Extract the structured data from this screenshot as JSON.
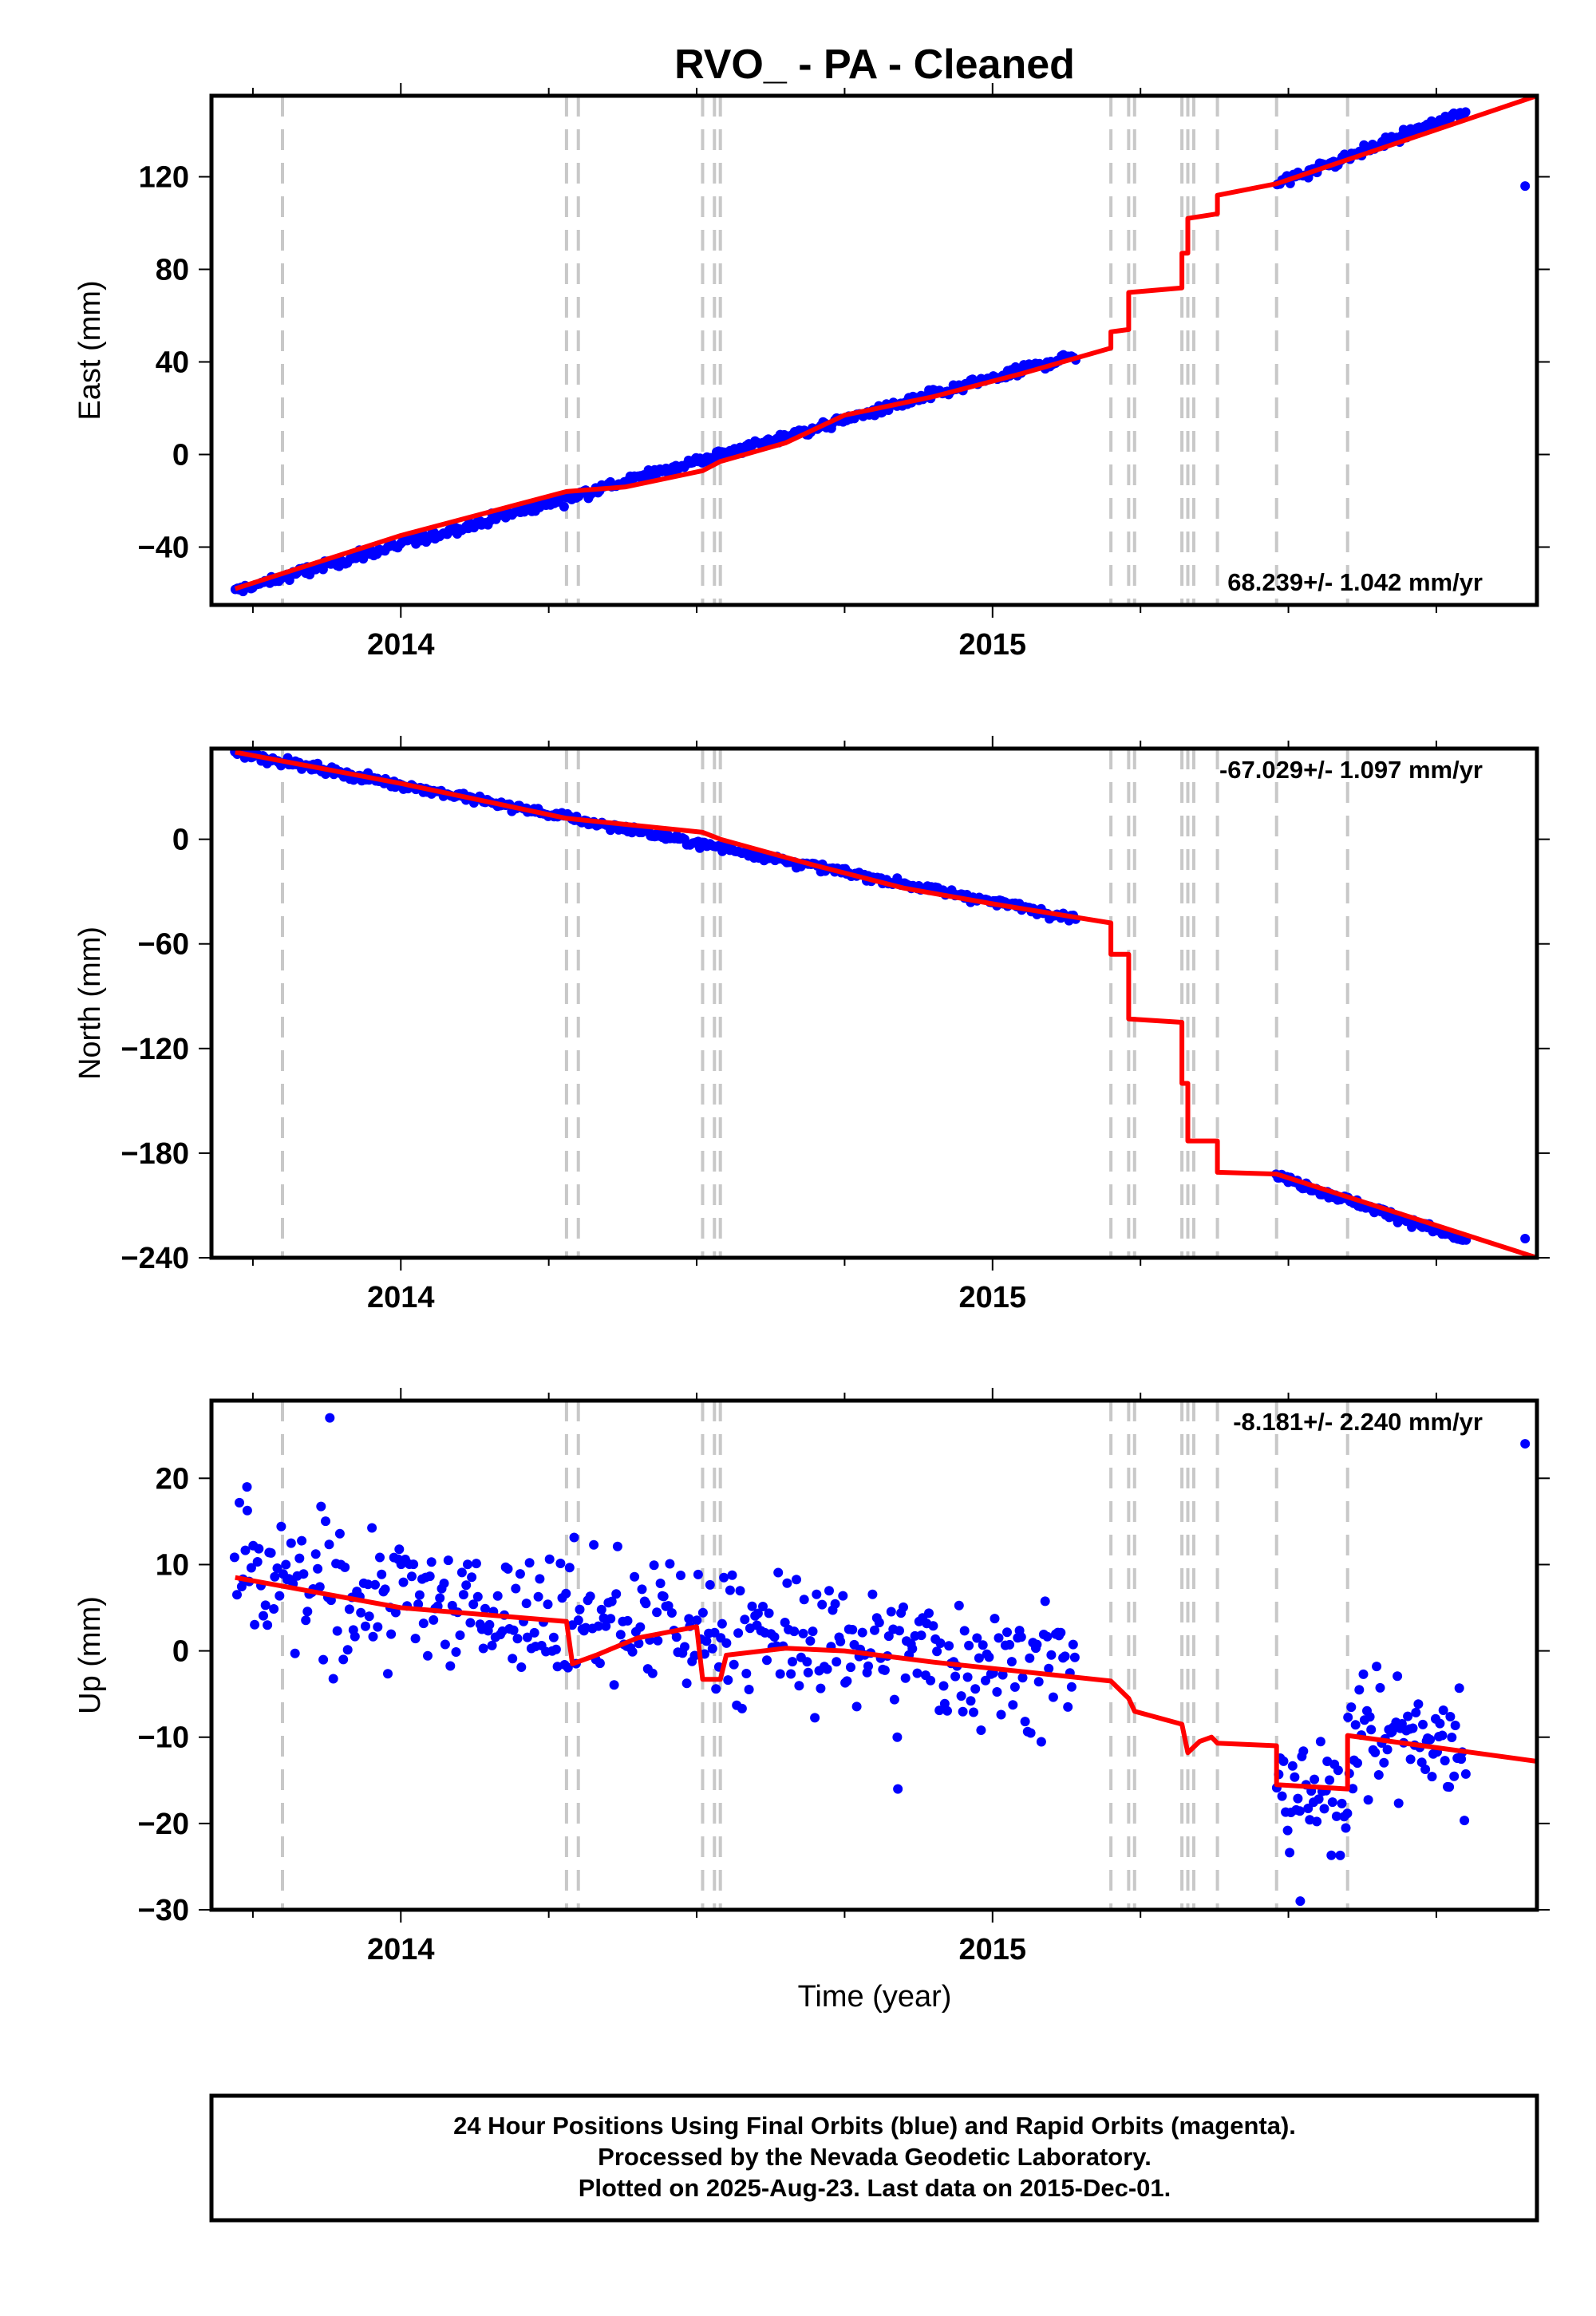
{
  "title": "RVO_  - PA - Cleaned",
  "xlabel": "Time (year)",
  "footer": [
    "24 Hour Positions Using Final Orbits (blue) and Rapid Orbits (magenta).",
    "Processed by the Nevada Geodetic Laboratory.",
    "Plotted on 2025-Aug-23. Last data on 2015-Dec-01."
  ],
  "colors": {
    "data": "#0000ff",
    "model": "#ff0000",
    "events": "#c8c8c8"
  },
  "chart_data": [
    {
      "type": "scatter",
      "ylabel": "East (mm)",
      "rate_label": "68.239+/- 1.042 mm/yr",
      "xlim": [
        2013.68,
        2015.92
      ],
      "ylim": [
        -65,
        155
      ],
      "yticks": [
        -40,
        0,
        40,
        80,
        120
      ],
      "xticks": [
        2014,
        2015
      ],
      "events": [
        2013.8,
        2014.28,
        2014.3,
        2014.51,
        2014.53,
        2014.54,
        2015.2,
        2015.23,
        2015.24,
        2015.32,
        2015.33,
        2015.34,
        2015.38,
        2015.48,
        2015.6
      ],
      "model": [
        [
          2013.72,
          -58
        ],
        [
          2014.0,
          -35
        ],
        [
          2014.28,
          -16
        ],
        [
          2014.38,
          -14
        ],
        [
          2014.51,
          -7
        ],
        [
          2014.54,
          -3
        ],
        [
          2014.65,
          5
        ],
        [
          2014.75,
          17
        ],
        [
          2014.9,
          25
        ],
        [
          2015.05,
          35
        ],
        [
          2015.2,
          46
        ],
        [
          2015.2,
          53
        ],
        [
          2015.23,
          54
        ],
        [
          2015.23,
          70
        ],
        [
          2015.32,
          72
        ],
        [
          2015.32,
          87
        ],
        [
          2015.33,
          87
        ],
        [
          2015.33,
          102
        ],
        [
          2015.38,
          104
        ],
        [
          2015.38,
          112
        ],
        [
          2015.48,
          117
        ],
        [
          2015.92,
          155
        ]
      ],
      "series": [
        {
          "segments": [
            [
              2013.72,
              2015.14,
              -59,
              43,
              1.6,
              420
            ]
          ]
        },
        {
          "segments": [
            [
              2015.48,
              2015.8,
              117,
              148,
              1.6,
              110
            ]
          ]
        },
        {
          "points": [
            [
              2015.9,
              116
            ]
          ]
        }
      ]
    },
    {
      "type": "scatter",
      "ylabel": "North (mm)",
      "rate_label": "-67.029+/- 1.097 mm/yr",
      "xlim": [
        2013.68,
        2015.92
      ],
      "ylim": [
        -240,
        52
      ],
      "yticks": [
        -240,
        -180,
        -120,
        -60,
        0
      ],
      "xticks": [
        2014,
        2015
      ],
      "events": [
        2013.8,
        2014.28,
        2014.3,
        2014.51,
        2014.53,
        2014.54,
        2015.2,
        2015.23,
        2015.24,
        2015.32,
        2015.33,
        2015.34,
        2015.38,
        2015.48,
        2015.6
      ],
      "model": [
        [
          2013.72,
          50
        ],
        [
          2014.0,
          32
        ],
        [
          2014.28,
          12
        ],
        [
          2014.51,
          4
        ],
        [
          2014.54,
          0
        ],
        [
          2014.7,
          -15
        ],
        [
          2014.85,
          -28
        ],
        [
          2015.0,
          -37
        ],
        [
          2015.2,
          -48
        ],
        [
          2015.2,
          -66
        ],
        [
          2015.23,
          -66
        ],
        [
          2015.23,
          -103
        ],
        [
          2015.32,
          -105
        ],
        [
          2015.32,
          -140
        ],
        [
          2015.33,
          -140
        ],
        [
          2015.33,
          -173
        ],
        [
          2015.38,
          -173
        ],
        [
          2015.38,
          -191
        ],
        [
          2015.48,
          -192
        ],
        [
          2015.92,
          -240
        ]
      ],
      "series": [
        {
          "segments": [
            [
              2013.72,
              2015.14,
              50,
              -45,
              1.6,
              420
            ]
          ]
        },
        {
          "segments": [
            [
              2015.48,
              2015.8,
              -193,
              -230,
              1.6,
              110
            ]
          ]
        },
        {
          "points": [
            [
              2015.9,
              -229
            ]
          ]
        }
      ]
    },
    {
      "type": "scatter",
      "ylabel": "Up (mm)",
      "rate_label": "-8.181+/- 2.240 mm/yr",
      "xlim": [
        2013.68,
        2015.92
      ],
      "ylim": [
        -30,
        29
      ],
      "yticks": [
        -30,
        -20,
        -10,
        0,
        10,
        20
      ],
      "xticks": [
        2014,
        2015
      ],
      "events": [
        2013.8,
        2014.28,
        2014.3,
        2014.51,
        2014.53,
        2014.54,
        2015.2,
        2015.23,
        2015.24,
        2015.32,
        2015.33,
        2015.34,
        2015.38,
        2015.48,
        2015.6
      ],
      "model": [
        [
          2013.72,
          8.5
        ],
        [
          2014.0,
          5.0
        ],
        [
          2014.28,
          3.4
        ],
        [
          2014.29,
          -1.5
        ],
        [
          2014.33,
          -0.5
        ],
        [
          2014.4,
          1.5
        ],
        [
          2014.5,
          2.8
        ],
        [
          2014.51,
          -3.3
        ],
        [
          2014.54,
          -3.3
        ],
        [
          2014.55,
          -0.5
        ],
        [
          2014.65,
          0.3
        ],
        [
          2014.75,
          0
        ],
        [
          2014.9,
          -1.3
        ],
        [
          2015.2,
          -3.5
        ],
        [
          2015.23,
          -5.5
        ],
        [
          2015.24,
          -7.0
        ],
        [
          2015.32,
          -8.5
        ],
        [
          2015.33,
          -11.8
        ],
        [
          2015.35,
          -10.5
        ],
        [
          2015.37,
          -10.0
        ],
        [
          2015.38,
          -10.7
        ],
        [
          2015.48,
          -11.0
        ],
        [
          2015.48,
          -15.5
        ],
        [
          2015.6,
          -16.0
        ],
        [
          2015.6,
          -9.8
        ],
        [
          2015.92,
          -12.8
        ]
      ],
      "series": [
        {
          "segments": [
            [
              2013.72,
              2015.14,
              8,
              -2,
              5.5,
              420
            ]
          ]
        },
        {
          "segments": [
            [
              2015.48,
              2015.6,
              -17,
              -17,
              4.5,
              40
            ]
          ]
        },
        {
          "segments": [
            [
              2015.6,
              2015.8,
              -9,
              -11,
              5,
              70
            ]
          ]
        },
        {
          "points": [
            [
              2015.9,
              24
            ],
            [
              2013.88,
              27
            ],
            [
              2014.84,
              -16
            ],
            [
              2015.52,
              -29
            ],
            [
              2013.74,
              19
            ]
          ]
        }
      ]
    }
  ]
}
